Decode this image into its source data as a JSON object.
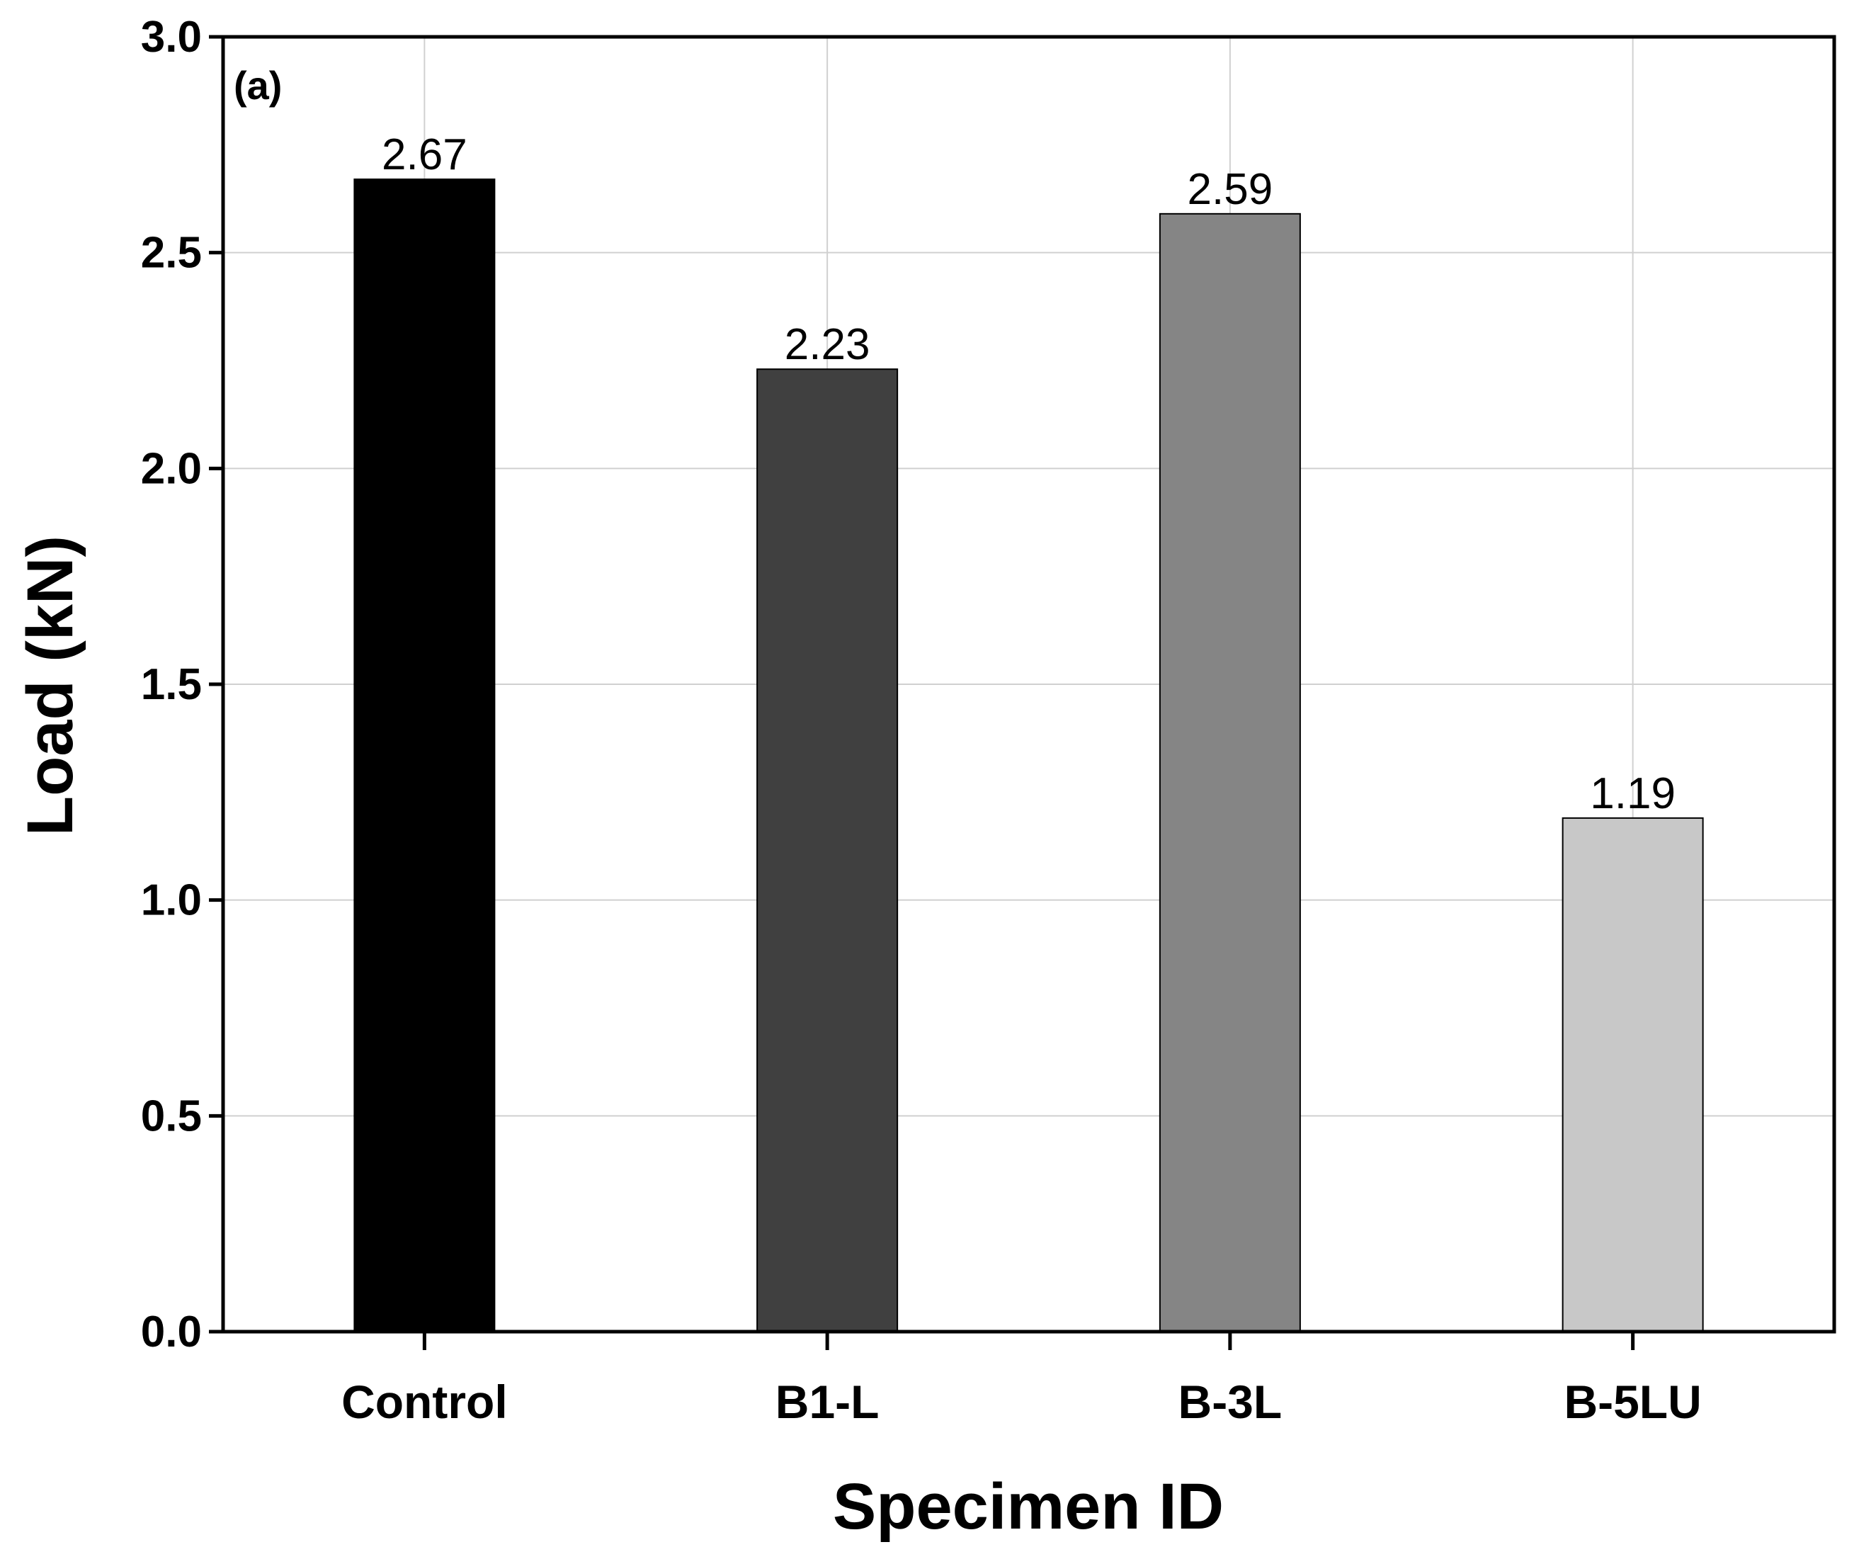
{
  "chart_data": {
    "type": "bar",
    "panel_label": "(a)",
    "title": "",
    "xlabel": "Specimen ID",
    "ylabel": "Load (kN)",
    "categories": [
      "Control",
      "B1-L",
      "B-3L",
      "B-5LU"
    ],
    "values": [
      2.67,
      2.23,
      2.59,
      1.19
    ],
    "value_labels": [
      "2.67",
      "2.23",
      "2.59",
      "1.19"
    ],
    "bar_colors": [
      "#000000",
      "#404040",
      "#858585",
      "#c8c8c8"
    ],
    "ylim": [
      0,
      3.0
    ],
    "yticks": [
      0.0,
      0.5,
      1.0,
      1.5,
      2.0,
      2.5,
      3.0
    ],
    "ytick_labels": [
      "0.0",
      "0.5",
      "1.0",
      "1.5",
      "2.0",
      "2.5",
      "3.0"
    ],
    "grid": true,
    "colors": {
      "grid": "#d0d0d0",
      "axis": "#000000"
    }
  }
}
